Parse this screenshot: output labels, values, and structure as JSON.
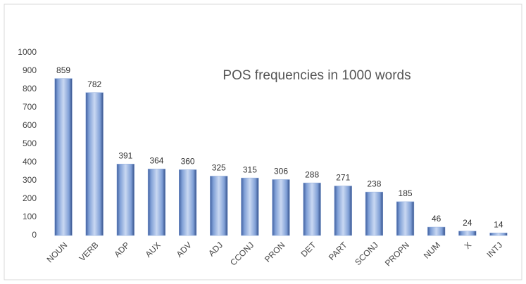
{
  "chart_data": {
    "type": "bar",
    "title": "POS frequencies in 1000 words",
    "categories": [
      "NOUN",
      "VERB",
      "ADP",
      "AUX",
      "ADV",
      "ADJ",
      "CCONJ",
      "PRON",
      "DET",
      "PART",
      "SCONJ",
      "PROPN",
      "NUM",
      "X",
      "INTJ"
    ],
    "values": [
      859,
      782,
      391,
      364,
      360,
      325,
      315,
      306,
      288,
      271,
      238,
      185,
      46,
      24,
      14
    ],
    "color": "#8eaadb",
    "ylim": [
      0,
      1000
    ],
    "yticks": [
      0,
      100,
      200,
      300,
      400,
      500,
      600,
      700,
      800,
      900,
      1000
    ],
    "grid": false
  }
}
